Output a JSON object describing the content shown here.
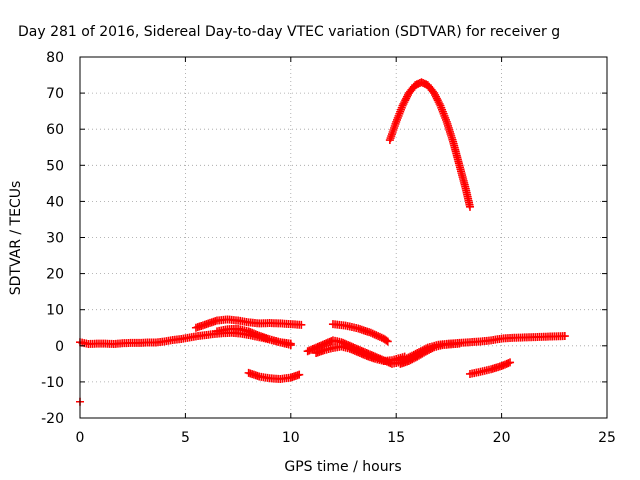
{
  "chart_data": {
    "type": "scatter",
    "title": "Day 281 of 2016, Sidereal Day-to-day VTEC variation (SDTVAR) for receiver g",
    "xlabel": "GPS time / hours",
    "ylabel": "SDTVAR / TECUs",
    "xlim": [
      0,
      25
    ],
    "ylim": [
      -20,
      80
    ],
    "xticks": [
      "0",
      "5",
      "10",
      "15",
      "20",
      "25"
    ],
    "yticks": [
      "-20",
      "-10",
      "0",
      "10",
      "20",
      "30",
      "40",
      "50",
      "60",
      "70",
      "80"
    ],
    "grid": true,
    "marker": "plus",
    "color": "#ff0000",
    "series": [
      {
        "points": [
          [
            0.0,
            -15.5
          ]
        ]
      },
      {
        "points": [
          [
            0.0,
            1.0
          ],
          [
            0.4,
            0.5
          ],
          [
            0.8,
            0.6
          ],
          [
            1.2,
            0.6
          ],
          [
            1.6,
            0.5
          ],
          [
            2.0,
            0.7
          ],
          [
            2.4,
            0.8
          ],
          [
            2.8,
            0.8
          ],
          [
            3.2,
            0.9
          ],
          [
            3.6,
            0.9
          ],
          [
            4.0,
            1.2
          ],
          [
            4.4,
            1.6
          ],
          [
            4.8,
            1.9
          ],
          [
            5.2,
            2.3
          ],
          [
            5.6,
            2.7
          ],
          [
            6.0,
            3.0
          ],
          [
            6.4,
            3.3
          ],
          [
            6.8,
            3.5
          ],
          [
            7.2,
            3.6
          ],
          [
            7.6,
            3.4
          ],
          [
            8.0,
            3.0
          ],
          [
            8.4,
            2.5
          ],
          [
            8.8,
            2.0
          ],
          [
            9.2,
            1.4
          ],
          [
            9.6,
            0.8
          ],
          [
            10.0,
            0.2
          ]
        ]
      },
      {
        "points": [
          [
            5.5,
            5.0
          ],
          [
            6.0,
            6.0
          ],
          [
            6.5,
            7.0
          ],
          [
            7.0,
            7.3
          ],
          [
            7.5,
            7.0
          ],
          [
            8.0,
            6.5
          ],
          [
            8.5,
            6.2
          ],
          [
            9.0,
            6.3
          ],
          [
            9.5,
            6.2
          ],
          [
            10.0,
            6.0
          ],
          [
            10.5,
            5.8
          ]
        ]
      },
      {
        "points": [
          [
            6.5,
            4.0
          ],
          [
            7.0,
            4.6
          ],
          [
            7.5,
            4.7
          ],
          [
            8.0,
            4.0
          ],
          [
            8.5,
            2.8
          ],
          [
            9.0,
            1.8
          ],
          [
            9.5,
            1.0
          ],
          [
            10.0,
            0.6
          ]
        ]
      },
      {
        "points": [
          [
            8.0,
            -7.5
          ],
          [
            8.5,
            -8.5
          ],
          [
            9.0,
            -9.0
          ],
          [
            9.5,
            -9.2
          ],
          [
            10.0,
            -8.8
          ],
          [
            10.4,
            -8.0
          ]
        ]
      },
      {
        "points": [
          [
            10.8,
            -1.5
          ],
          [
            11.2,
            -0.5
          ],
          [
            11.6,
            0.5
          ],
          [
            12.0,
            1.5
          ],
          [
            12.4,
            1.0
          ],
          [
            12.8,
            0.0
          ],
          [
            13.2,
            -1.0
          ],
          [
            13.6,
            -2.0
          ],
          [
            14.0,
            -3.0
          ],
          [
            14.4,
            -4.0
          ],
          [
            14.8,
            -5.0
          ],
          [
            15.2,
            -4.5
          ]
        ]
      },
      {
        "points": [
          [
            11.2,
            -2.0
          ],
          [
            11.6,
            -1.2
          ],
          [
            12.0,
            -0.6
          ],
          [
            12.4,
            -0.2
          ],
          [
            12.8,
            -0.8
          ],
          [
            13.2,
            -1.8
          ],
          [
            13.6,
            -2.8
          ],
          [
            14.0,
            -3.6
          ],
          [
            14.4,
            -4.2
          ],
          [
            14.8,
            -4.0
          ],
          [
            15.4,
            -3.0
          ]
        ]
      },
      {
        "points": [
          [
            12.0,
            6.0
          ],
          [
            12.6,
            5.6
          ],
          [
            13.2,
            4.8
          ],
          [
            13.8,
            3.6
          ],
          [
            14.4,
            2.0
          ],
          [
            14.6,
            1.2
          ]
        ]
      },
      {
        "points": [
          [
            14.7,
            57.0
          ],
          [
            15.0,
            62.0
          ],
          [
            15.3,
            66.5
          ],
          [
            15.6,
            70.0
          ],
          [
            15.9,
            72.2
          ],
          [
            16.2,
            73.0
          ],
          [
            16.5,
            72.2
          ],
          [
            16.8,
            70.0
          ],
          [
            17.1,
            66.5
          ],
          [
            17.4,
            62.0
          ],
          [
            17.7,
            56.5
          ],
          [
            18.0,
            50.0
          ],
          [
            18.3,
            43.5
          ],
          [
            18.5,
            38.5
          ]
        ]
      },
      {
        "points": [
          [
            15.0,
            -4.0
          ],
          [
            15.5,
            -3.5
          ],
          [
            16.0,
            -2.0
          ],
          [
            16.5,
            -0.5
          ],
          [
            17.0,
            0.3
          ],
          [
            17.5,
            0.6
          ],
          [
            18.0,
            0.8
          ],
          [
            18.5,
            1.0
          ],
          [
            19.0,
            1.2
          ],
          [
            19.5,
            1.5
          ],
          [
            20.0,
            2.0
          ],
          [
            20.5,
            2.2
          ],
          [
            21.0,
            2.3
          ],
          [
            21.5,
            2.4
          ],
          [
            22.0,
            2.5
          ],
          [
            22.5,
            2.6
          ],
          [
            23.0,
            2.7
          ]
        ]
      },
      {
        "points": [
          [
            15.2,
            -5.0
          ],
          [
            15.6,
            -4.2
          ],
          [
            16.0,
            -3.0
          ],
          [
            16.4,
            -1.6
          ],
          [
            16.8,
            -0.4
          ],
          [
            17.2,
            0.2
          ],
          [
            17.6,
            0.4
          ],
          [
            18.0,
            0.6
          ]
        ]
      },
      {
        "points": [
          [
            18.5,
            -7.8
          ],
          [
            19.0,
            -7.2
          ],
          [
            19.5,
            -6.5
          ],
          [
            20.0,
            -5.6
          ],
          [
            20.4,
            -4.6
          ]
        ]
      }
    ]
  }
}
